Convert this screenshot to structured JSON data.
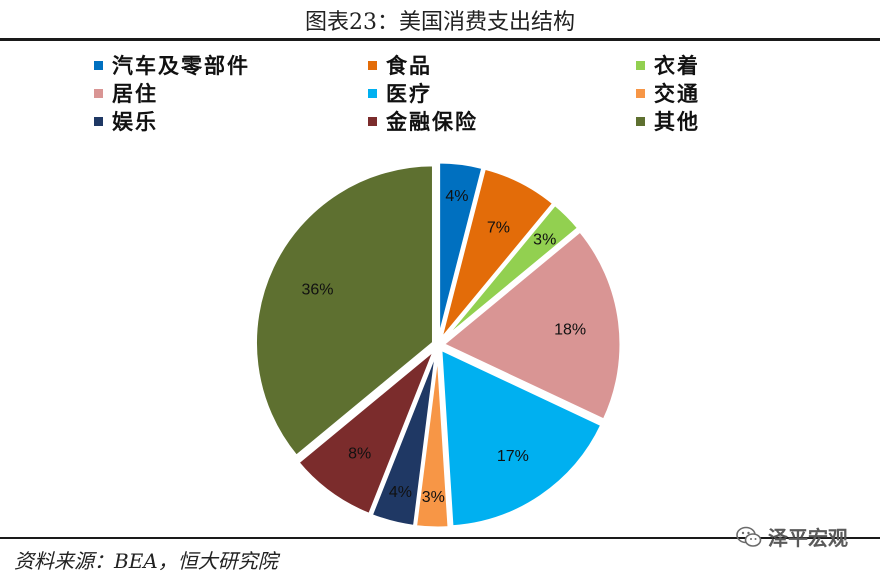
{
  "figure": {
    "title": "图表23：美国消费支出结构",
    "source": "资料来源：BEA，恒大研究院",
    "watermark": "泽平宏观",
    "watermark_icon": "wechat-icon"
  },
  "chart_data": {
    "type": "pie",
    "title": "",
    "categories": [
      "汽车及零部件",
      "食品",
      "衣着",
      "居住",
      "医疗",
      "交通",
      "娱乐",
      "金融保险",
      "其他"
    ],
    "values": [
      4,
      7,
      3,
      18,
      17,
      3,
      4,
      8,
      36
    ],
    "labels": [
      "4%",
      "7%",
      "3%",
      "18%",
      "17%",
      "3%",
      "4%",
      "8%",
      "36%"
    ],
    "colors": [
      "#0070C0",
      "#E36C09",
      "#92D050",
      "#D99594",
      "#00B0F0",
      "#F79646",
      "#1F3864",
      "#7B2C2C",
      "#5E7030"
    ],
    "label_colors": [
      "#111111",
      "#111111",
      "#111111",
      "#111111",
      "#111111",
      "#111111",
      "#111111",
      "#111111",
      "#111111"
    ],
    "legend_position": "top",
    "start": "top, clockwise"
  }
}
